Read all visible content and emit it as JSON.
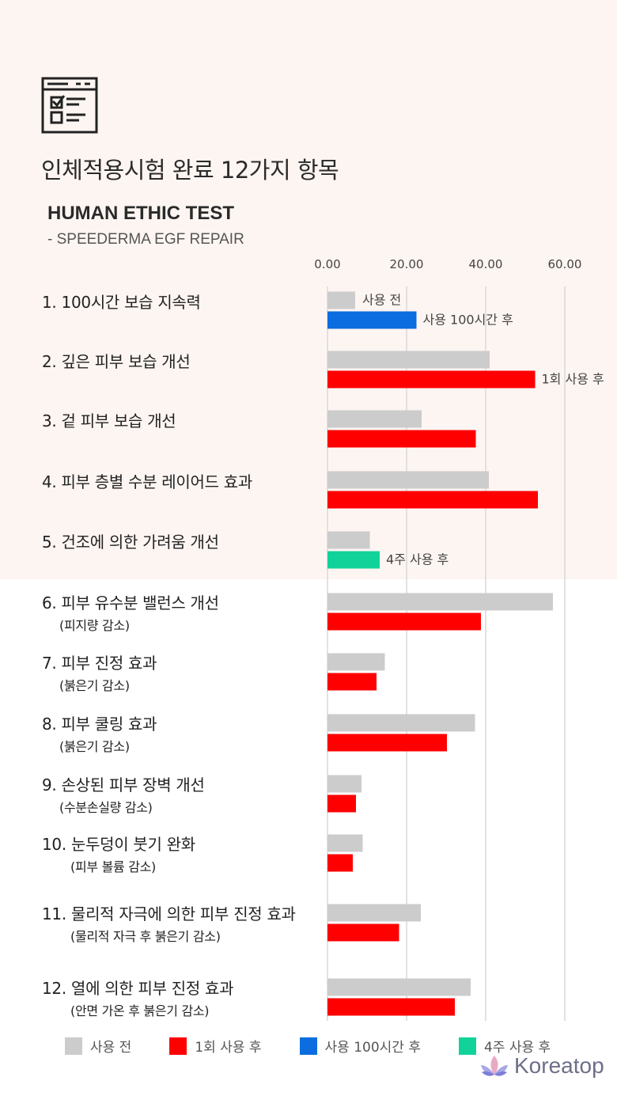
{
  "header": {
    "icon": "checklist-document-icon",
    "title": "인체적용시험 완료 12가지 항목",
    "subtitle": "HUMAN ETHIC TEST",
    "product": "- SPEEDERMA EGF REPAIR"
  },
  "colors": {
    "before": "#cccccc",
    "one_use": "#fe0000",
    "hours_100": "#0b6de0",
    "weeks_4": "#11d39a",
    "grid": "#d9d9d9",
    "top_background": "#fdf5f2"
  },
  "chart_data": {
    "type": "bar",
    "orientation": "horizontal",
    "xlim": [
      0,
      60
    ],
    "ticks": [
      "0.00",
      "20.00",
      "40.00",
      "60.00"
    ],
    "grid": true,
    "legend_position": "bottom",
    "legend": [
      {
        "label": "사용 전",
        "color": "#cccccc"
      },
      {
        "label": "1회 사용 후",
        "color": "#fe0000"
      },
      {
        "label": "사용 100시간 후",
        "color": "#0b6de0"
      },
      {
        "label": "4주 사용 후",
        "color": "#11d39a"
      }
    ],
    "categories": [
      {
        "label": "1. 100시간 보습 지속력",
        "sub": "",
        "before": 7,
        "after": 22.5,
        "after_series": "사용 100시간 후",
        "before_label": "사용 전",
        "after_label": "사용 100시간 후"
      },
      {
        "label": "2. 깊은 피부 보습 개선",
        "sub": "",
        "before": 41,
        "after": 52.5,
        "after_series": "1회 사용 후",
        "before_label": "",
        "after_label": "1회 사용 후"
      },
      {
        "label": "3. 겉 피부 보습 개선",
        "sub": "",
        "before": 23.8,
        "after": 37.5,
        "after_series": "1회 사용 후",
        "before_label": "",
        "after_label": ""
      },
      {
        "label": "4. 피부 층별 수분 레이어드 효과",
        "sub": "",
        "before": 40.8,
        "after": 53.2,
        "after_series": "1회 사용 후",
        "before_label": "",
        "after_label": ""
      },
      {
        "label": "5. 건조에 의한 가려움 개선",
        "sub": "",
        "before": 10.7,
        "after": 13.2,
        "after_series": "4주 사용 후",
        "before_label": "",
        "after_label": "4주 사용 후"
      },
      {
        "label": "6. 피부 유수분 밸런스 개선",
        "sub": "(피지량 감소)",
        "before": 57,
        "after": 38.8,
        "after_series": "1회 사용 후",
        "before_label": "",
        "after_label": ""
      },
      {
        "label": "7. 피부 진정 효과",
        "sub": "(붉은기 감소)",
        "before": 14.5,
        "after": 12.4,
        "after_series": "1회 사용 후",
        "before_label": "",
        "after_label": ""
      },
      {
        "label": "8. 피부 쿨링 효과",
        "sub": "(붉은기 감소)",
        "before": 37.3,
        "after": 30.2,
        "after_series": "1회 사용 후",
        "before_label": "",
        "after_label": ""
      },
      {
        "label": "9. 손상된 피부 장벽 개선",
        "sub": "(수분손실량 감소)",
        "before": 8.6,
        "after": 7.2,
        "after_series": "1회 사용 후",
        "before_label": "",
        "after_label": ""
      },
      {
        "label": "10. 눈두덩이 붓기 완화",
        "sub": "(피부 볼륨 감소)",
        "before": 8.9,
        "after": 6.4,
        "after_series": "1회 사용 후",
        "before_label": "",
        "after_label": ""
      },
      {
        "label": "11. 물리적 자극에 의한 피부 진정 효과",
        "sub": "(물리적 자극 후 붉은기 감소)",
        "before": 23.6,
        "after": 18.1,
        "after_series": "1회 사용 후",
        "before_label": "",
        "after_label": ""
      },
      {
        "label": "12. 열에 의한 피부 진정 효과",
        "sub": "(안면 가온 후 붉은기 감소)",
        "before": 36.2,
        "after": 32.2,
        "after_series": "1회 사용 후",
        "before_label": "",
        "after_label": ""
      }
    ]
  },
  "brand": {
    "name": "Koreatop",
    "logo_icon": "lotus-icon"
  }
}
